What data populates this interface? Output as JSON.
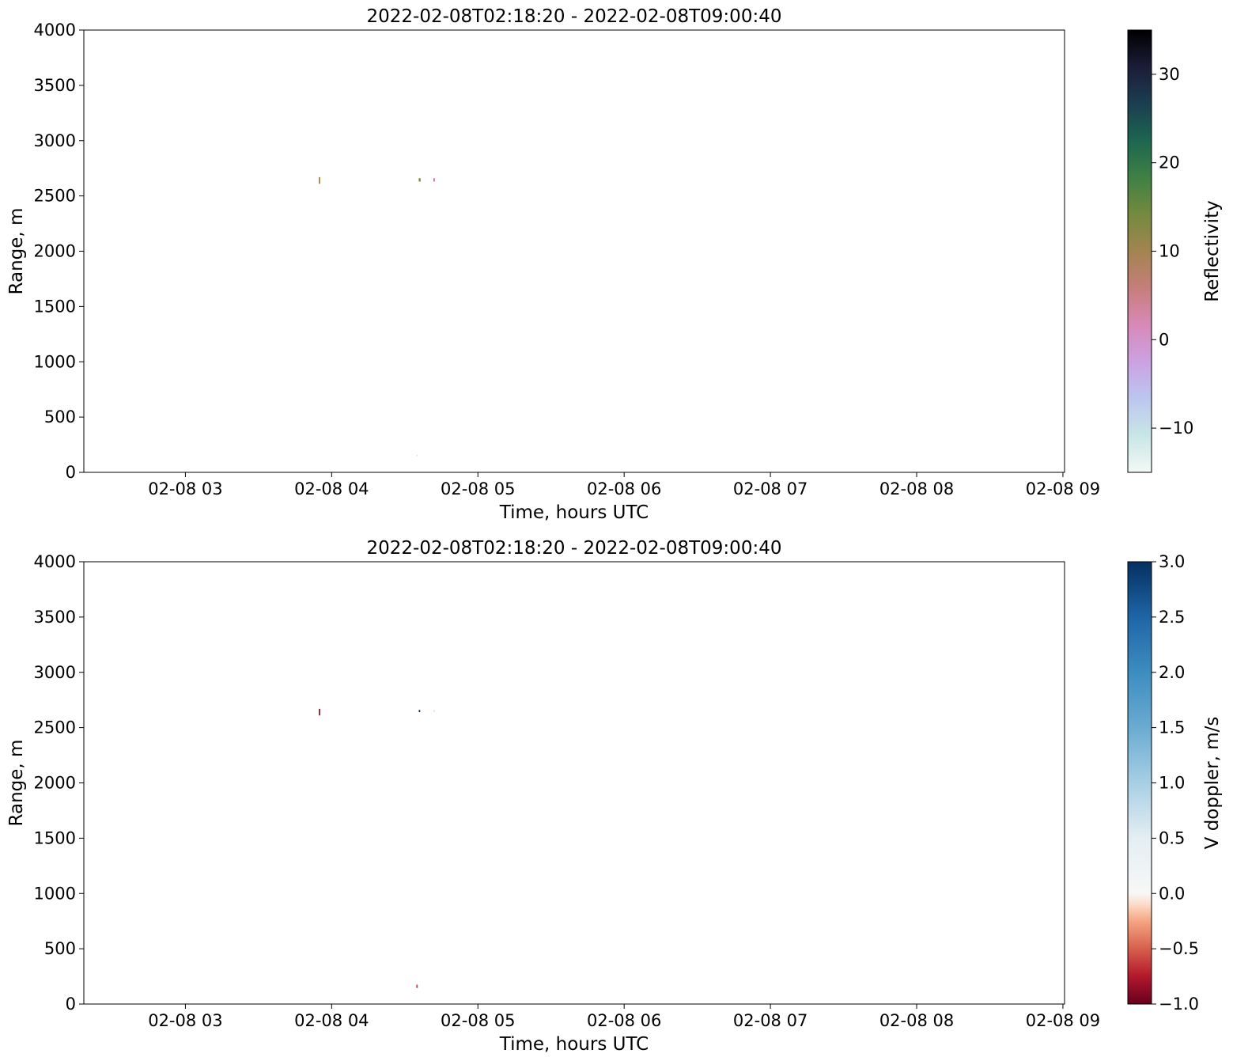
{
  "chart_data": [
    {
      "type": "heatmap",
      "title": "2022-02-08T02:18:20 - 2022-02-08T09:00:40",
      "xlabel": "Time, hours UTC",
      "ylabel": "Range, m",
      "xlim": [
        "2022-02-08T02:18:20",
        "2022-02-08T09:00:40"
      ],
      "ylim": [
        0,
        4000
      ],
      "xticks": [
        {
          "value": "2022-02-08T03:00:00",
          "label": "02-08 03"
        },
        {
          "value": "2022-02-08T04:00:00",
          "label": "02-08 04"
        },
        {
          "value": "2022-02-08T05:00:00",
          "label": "02-08 05"
        },
        {
          "value": "2022-02-08T06:00:00",
          "label": "02-08 06"
        },
        {
          "value": "2022-02-08T07:00:00",
          "label": "02-08 07"
        },
        {
          "value": "2022-02-08T08:00:00",
          "label": "02-08 08"
        },
        {
          "value": "2022-02-08T09:00:00",
          "label": "02-08 09"
        }
      ],
      "yticks": [
        0,
        500,
        1000,
        1500,
        2000,
        2500,
        3000,
        3500,
        4000
      ],
      "grid": false,
      "colorbar": {
        "label": "Reflectivity",
        "range": [
          -15,
          35
        ],
        "ticks": [
          {
            "value": -10,
            "label": "−10"
          },
          {
            "value": 0,
            "label": "0"
          },
          {
            "value": 10,
            "label": "10"
          },
          {
            "value": 20,
            "label": "20"
          },
          {
            "value": 30,
            "label": "30"
          }
        ],
        "colormap": "cubehelix_r",
        "stops": [
          "#f2f9f5",
          "#c8e6e6",
          "#bcc6f0",
          "#cca1e2",
          "#d889b8",
          "#c57e7a",
          "#a38450",
          "#748a3e",
          "#3f8045",
          "#1d6650",
          "#1b3e50",
          "#1c1c38",
          "#000000"
        ]
      },
      "points": [
        {
          "time": "2022-02-08T03:55:00",
          "range_from": 2610,
          "range_to": 2670,
          "value": 11,
          "color": "#b0803e"
        },
        {
          "time": "2022-02-08T04:35:00",
          "range_from": 145,
          "range_to": 160,
          "value": -12,
          "color": "#d8ece4"
        },
        {
          "time": "2022-02-08T04:36:00",
          "range_from": 2630,
          "range_to": 2660,
          "value": 12,
          "color": "#8a7a3e"
        },
        {
          "time": "2022-02-08T04:36:10",
          "range_from": 2630,
          "range_to": 2660,
          "value": 13,
          "color": "#7a8a3e"
        },
        {
          "time": "2022-02-08T04:42:00",
          "range_from": 2630,
          "range_to": 2660,
          "value": 5,
          "color": "#d0707a"
        }
      ]
    },
    {
      "type": "heatmap",
      "title": "2022-02-08T02:18:20 - 2022-02-08T09:00:40",
      "xlabel": "Time, hours UTC",
      "ylabel": "Range, m",
      "xlim": [
        "2022-02-08T02:18:20",
        "2022-02-08T09:00:40"
      ],
      "ylim": [
        0,
        4000
      ],
      "xticks": [
        {
          "value": "2022-02-08T03:00:00",
          "label": "02-08 03"
        },
        {
          "value": "2022-02-08T04:00:00",
          "label": "02-08 04"
        },
        {
          "value": "2022-02-08T05:00:00",
          "label": "02-08 05"
        },
        {
          "value": "2022-02-08T06:00:00",
          "label": "02-08 06"
        },
        {
          "value": "2022-02-08T07:00:00",
          "label": "02-08 07"
        },
        {
          "value": "2022-02-08T08:00:00",
          "label": "02-08 08"
        },
        {
          "value": "2022-02-08T09:00:00",
          "label": "02-08 09"
        }
      ],
      "yticks": [
        0,
        500,
        1000,
        1500,
        2000,
        2500,
        3000,
        3500,
        4000
      ],
      "grid": false,
      "colorbar": {
        "label": "V doppler, m/s",
        "range": [
          -1.0,
          3.0
        ],
        "ticks": [
          {
            "value": -1.0,
            "label": "−1.0"
          },
          {
            "value": -0.5,
            "label": "−0.5"
          },
          {
            "value": 0.0,
            "label": "0.0"
          },
          {
            "value": 0.5,
            "label": "0.5"
          },
          {
            "value": 1.0,
            "label": "1.0"
          },
          {
            "value": 1.5,
            "label": "1.5"
          },
          {
            "value": 2.0,
            "label": "2.0"
          },
          {
            "value": 2.5,
            "label": "2.5"
          },
          {
            "value": 3.0,
            "label": "3.0"
          }
        ],
        "colormap": "RdBu",
        "stops": [
          {
            "value": -1.0,
            "color": "#67001f"
          },
          {
            "value": -0.75,
            "color": "#b2182b"
          },
          {
            "value": -0.5,
            "color": "#d6604d"
          },
          {
            "value": -0.25,
            "color": "#f4a582"
          },
          {
            "value": -0.1,
            "color": "#fddbc7"
          },
          {
            "value": 0.0,
            "color": "#f7f7f7"
          },
          {
            "value": 0.5,
            "color": "#e4eef3"
          },
          {
            "value": 1.0,
            "color": "#a7cfe4"
          },
          {
            "value": 1.5,
            "color": "#6aabd2"
          },
          {
            "value": 2.0,
            "color": "#3d8dc0"
          },
          {
            "value": 2.5,
            "color": "#1f65a6"
          },
          {
            "value": 3.0,
            "color": "#053061"
          }
        ]
      },
      "points": [
        {
          "time": "2022-02-08T03:55:00",
          "range_from": 2610,
          "range_to": 2670,
          "value": -0.9,
          "color": "#8a1c2a"
        },
        {
          "time": "2022-02-08T04:35:00",
          "range_from": 145,
          "range_to": 175,
          "value": -0.6,
          "color": "#c0404a"
        },
        {
          "time": "2022-02-08T04:36:00",
          "range_from": 2640,
          "range_to": 2660,
          "value": 3.0,
          "color": "#0a2a55"
        },
        {
          "time": "2022-02-08T04:42:00",
          "range_from": 2640,
          "range_to": 2660,
          "value": 0.3,
          "color": "#dde6ee"
        }
      ]
    }
  ]
}
